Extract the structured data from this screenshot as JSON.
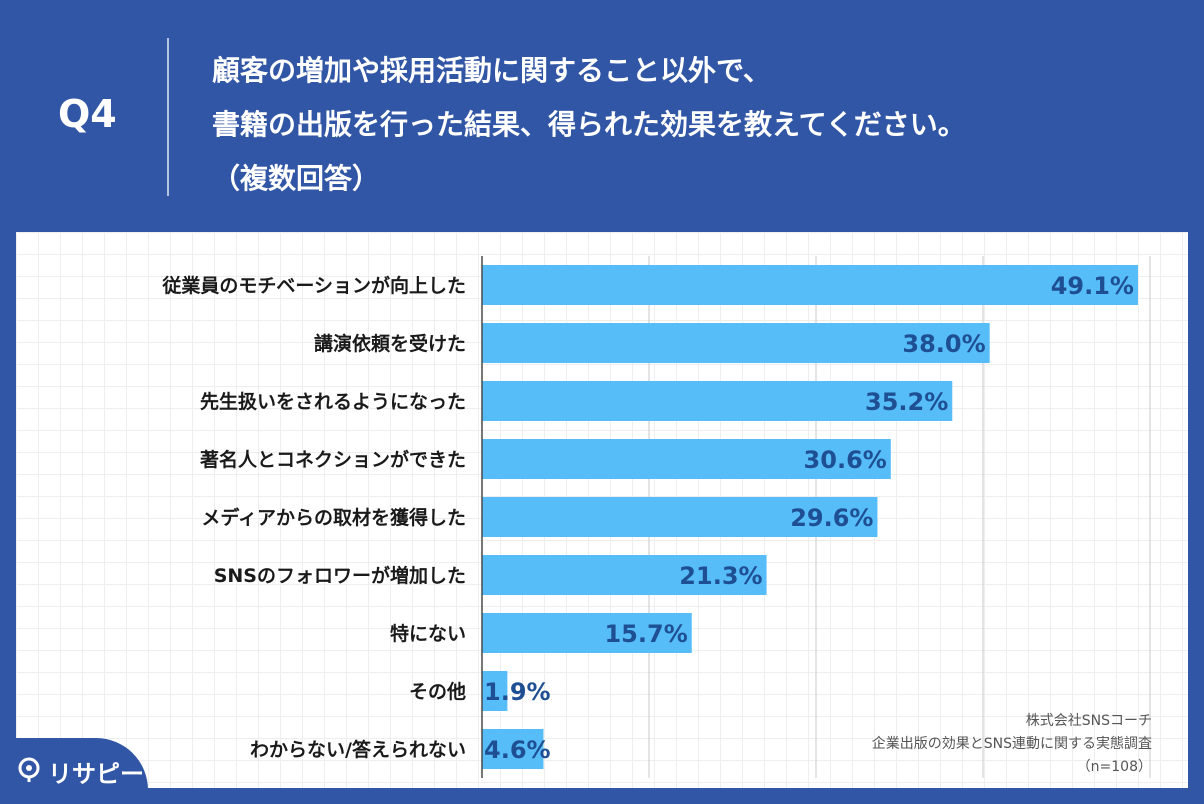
{
  "header": {
    "q_number": "Q4",
    "question_lines": [
      "顧客の増加や採用活動に関すること以外で、",
      "書籍の出版を行った結果、得られた効果を教えてください。",
      "（複数回答）"
    ]
  },
  "chart_data": {
    "type": "bar",
    "orientation": "horizontal",
    "categories": [
      "従業員のモチベーションが向上した",
      "講演依頼を受けた",
      "先生扱いをされるようになった",
      "著名人とコネクションができた",
      "メディアからの取材を獲得した",
      "SNSのフォロワーが増加した",
      "特にない",
      "その他",
      "わからない/答えられない"
    ],
    "values": [
      49.1,
      38.0,
      35.2,
      30.6,
      29.6,
      21.3,
      15.7,
      1.9,
      4.6
    ],
    "data_labels": [
      "49.1%",
      "38.0%",
      "35.2%",
      "30.6%",
      "29.6%",
      "21.3%",
      "15.7%",
      "1.9%",
      "4.6%"
    ],
    "xlim": [
      0,
      50
    ],
    "gridline_values": [
      0,
      12.5,
      25,
      37.5,
      50
    ],
    "grid": true,
    "bar_color": "#56bdf9",
    "label_color": "#1f4f93"
  },
  "source": {
    "lines": [
      "株式会社SNSコーチ",
      "企業出版の効果とSNS連動に関する実態調査",
      "（n=108）"
    ]
  },
  "logo": {
    "text": "リサピー"
  },
  "colors": {
    "background": "#3156a5",
    "panel": "#ffffff"
  }
}
